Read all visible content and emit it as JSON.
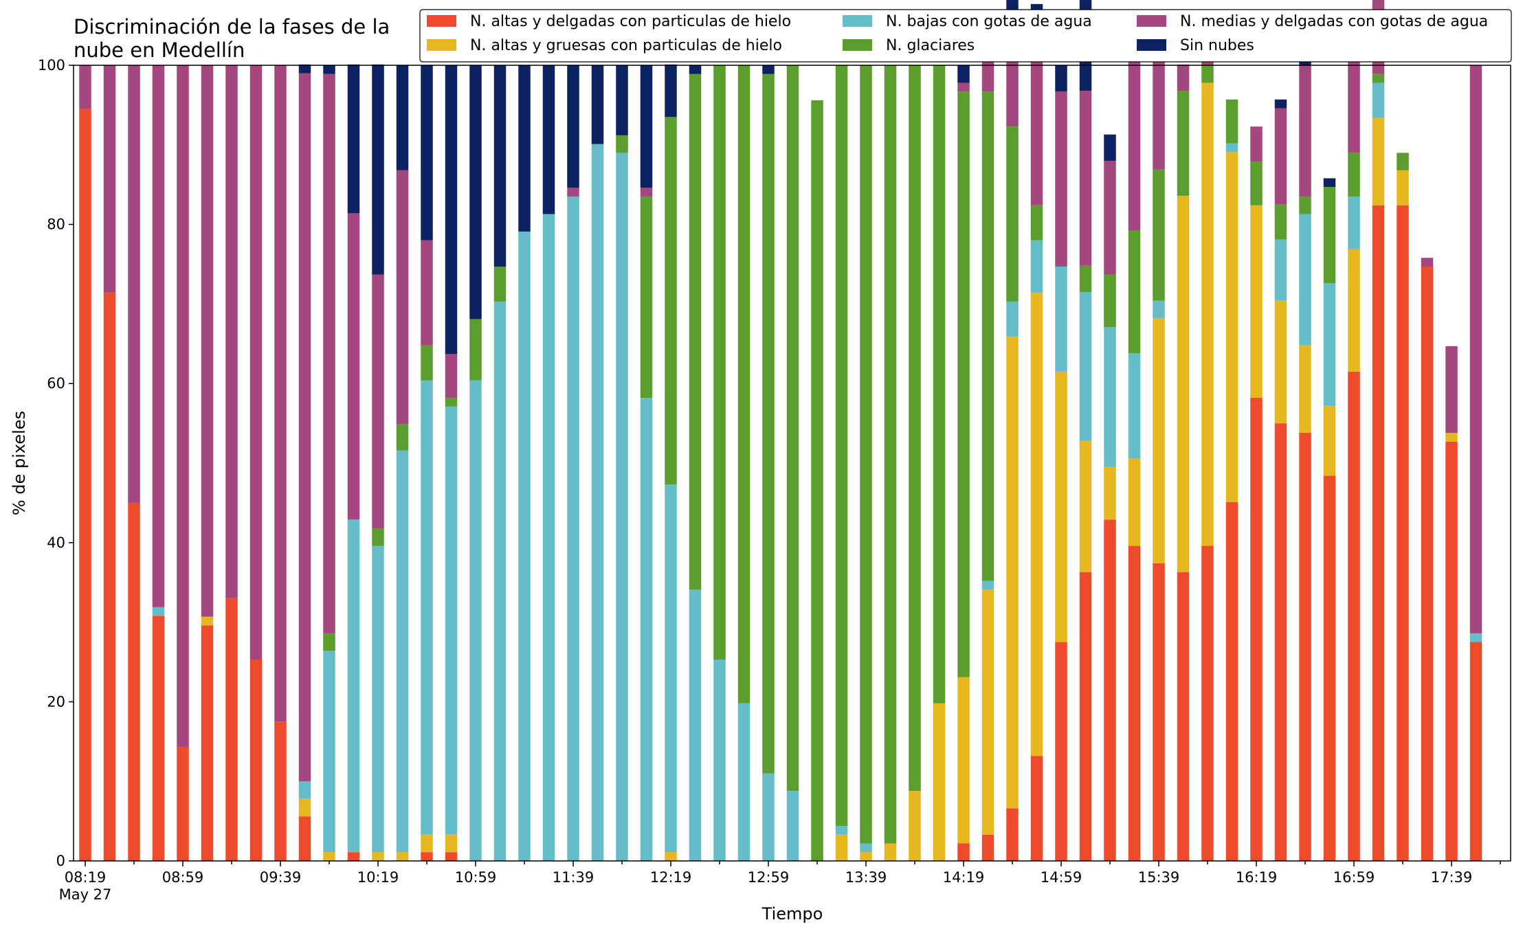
{
  "chart_data": {
    "type": "bar",
    "stacked": true,
    "title": "Discriminación de la fases de la nube en Medellín",
    "title_lines": [
      "Discriminación de la fases de la",
      "nube en Medellín"
    ],
    "xlabel": "Tiempo",
    "ylabel": "% de pixeles",
    "ylim": [
      0,
      100
    ],
    "y_ticks": [
      0,
      20,
      40,
      60,
      80,
      100
    ],
    "x_tick_labels": [
      "08:19",
      "08:59",
      "09:39",
      "10:19",
      "10:59",
      "11:39",
      "12:19",
      "12:59",
      "13:39",
      "14:19",
      "14:59",
      "15:39",
      "16:19",
      "16:59",
      "17:39"
    ],
    "x_tick_sublabel": "May 27",
    "x_tick_interval_minutes": 40,
    "bar_interval_minutes": 10,
    "legend_position": "top-right",
    "grid": false,
    "categories": [
      "08:19",
      "08:29",
      "08:39",
      "08:49",
      "08:59",
      "09:09",
      "09:19",
      "09:29",
      "09:39",
      "09:49",
      "09:59",
      "10:09",
      "10:19",
      "10:29",
      "10:39",
      "10:49",
      "10:59",
      "11:09",
      "11:19",
      "11:29",
      "11:39",
      "11:49",
      "11:59",
      "12:09",
      "12:19",
      "12:29",
      "12:39",
      "12:49",
      "12:59",
      "13:09",
      "13:19",
      "13:29",
      "13:39",
      "13:49",
      "13:59",
      "14:09",
      "14:19",
      "14:29",
      "14:39",
      "14:49",
      "14:59",
      "15:09",
      "15:19",
      "15:29",
      "15:39",
      "15:49",
      "15:59",
      "16:09",
      "16:19",
      "16:29",
      "16:39",
      "16:49",
      "16:59",
      "17:09",
      "17:19",
      "17:29",
      "17:39",
      "17:49"
    ],
    "series": [
      {
        "name": "N. altas y delgadas con particulas de hielo",
        "color": "#ee4a2c",
        "values": [
          94.5,
          71.4,
          45.0,
          30.8,
          14.3,
          29.6,
          33.0,
          25.3,
          17.5,
          5.6,
          0,
          1.1,
          0,
          0,
          1.1,
          1.1,
          0,
          0,
          0,
          0,
          0,
          0,
          0,
          0,
          0,
          0,
          0,
          0,
          0,
          0,
          0,
          0,
          0,
          0,
          0,
          0,
          2.2,
          3.3,
          6.6,
          13.2,
          27.5,
          36.3,
          42.9,
          39.6,
          37.4,
          36.3,
          39.6,
          45.1,
          58.2,
          55.0,
          53.8,
          48.4,
          61.5,
          82.4,
          82.4,
          74.7,
          52.7,
          27.5
        ]
      },
      {
        "name": "N. altas y gruesas con particulas de hielo",
        "color": "#e6b71e",
        "values": [
          0,
          0,
          0,
          0,
          0,
          1.1,
          0,
          0,
          0,
          2.2,
          1.1,
          0,
          1.1,
          1.1,
          2.2,
          2.2,
          0,
          0,
          0,
          0,
          0,
          0,
          0,
          0,
          1.1,
          0,
          0,
          0,
          0,
          0,
          0,
          3.3,
          1.1,
          2.2,
          8.8,
          19.8,
          20.9,
          30.8,
          59.3,
          58.2,
          34.0,
          16.5,
          6.6,
          11.0,
          30.8,
          47.3,
          58.2,
          44.0,
          24.2,
          15.4,
          11.0,
          8.8,
          15.4,
          11.0,
          4.4,
          0,
          1.1,
          0
        ]
      },
      {
        "name": "N. bajas con gotas de agua",
        "color": "#65bdc9",
        "values": [
          0,
          0,
          0,
          1.1,
          0,
          0,
          0,
          0,
          0,
          2.2,
          25.3,
          41.8,
          38.5,
          50.5,
          57.1,
          53.8,
          60.4,
          70.3,
          79.1,
          81.3,
          83.5,
          90.1,
          89.0,
          58.2,
          46.2,
          34.1,
          25.3,
          19.8,
          11.0,
          8.8,
          0,
          1.1,
          1.1,
          0,
          0,
          0,
          0,
          1.1,
          4.4,
          6.6,
          13.2,
          18.7,
          17.6,
          13.2,
          2.2,
          0,
          0,
          1.1,
          0,
          7.7,
          16.5,
          15.4,
          6.6,
          4.4,
          0,
          0,
          0,
          1.1
        ]
      },
      {
        "name": "N. glaciares",
        "color": "#5b9e2e",
        "values": [
          0,
          0,
          0,
          0,
          0,
          0,
          0,
          0,
          0,
          0,
          2.2,
          0,
          2.2,
          3.3,
          4.4,
          1.1,
          7.7,
          4.4,
          0,
          0,
          0,
          0,
          2.2,
          25.3,
          46.2,
          64.8,
          74.7,
          80.2,
          87.9,
          91.2,
          95.6,
          95.6,
          97.8,
          97.8,
          91.2,
          80.2,
          73.6,
          61.5,
          22.0,
          4.4,
          0,
          3.3,
          6.6,
          15.4,
          16.5,
          13.2,
          2.2,
          5.5,
          5.5,
          4.4,
          2.2,
          12.1,
          5.5,
          1.1,
          2.2,
          0,
          0,
          0
        ]
      },
      {
        "name": "N. medias y delgadas con gotas de agua",
        "color": "#a4477e",
        "values": [
          5.5,
          28.6,
          55.0,
          68.1,
          85.7,
          69.3,
          67.0,
          74.7,
          82.5,
          89.0,
          70.3,
          38.5,
          31.9,
          31.9,
          13.2,
          5.5,
          0,
          0,
          0,
          0,
          1.1,
          0,
          0,
          1.1,
          0,
          0,
          0,
          0,
          0,
          0,
          0,
          0,
          0,
          0,
          0,
          0,
          1.1,
          5.5,
          8.8,
          20.9,
          22.0,
          22.0,
          14.3,
          23.1,
          15.4,
          3.3,
          1.1,
          0,
          4.4,
          12.1,
          16.5,
          0,
          14.3,
          9.9,
          0,
          1.1,
          10.9,
          71.4
        ]
      },
      {
        "name": "Sin nubes",
        "color": "#0d2262",
        "values": [
          0,
          0,
          0,
          0,
          0,
          0,
          0,
          0,
          0,
          1.1,
          1.1,
          18.7,
          26.4,
          13.2,
          22.0,
          36.3,
          31.9,
          25.3,
          20.9,
          18.7,
          15.4,
          9.9,
          8.8,
          15.4,
          6.6,
          1.1,
          0,
          0,
          1.1,
          0,
          0,
          0,
          0,
          0,
          0,
          0,
          2.2,
          2.2,
          8.8,
          4.4,
          3.3,
          12.1,
          3.3,
          3.3,
          0,
          0,
          0,
          0,
          0,
          1.1,
          1.1,
          1.1,
          0,
          0,
          0,
          0,
          0,
          0
        ]
      }
    ]
  }
}
